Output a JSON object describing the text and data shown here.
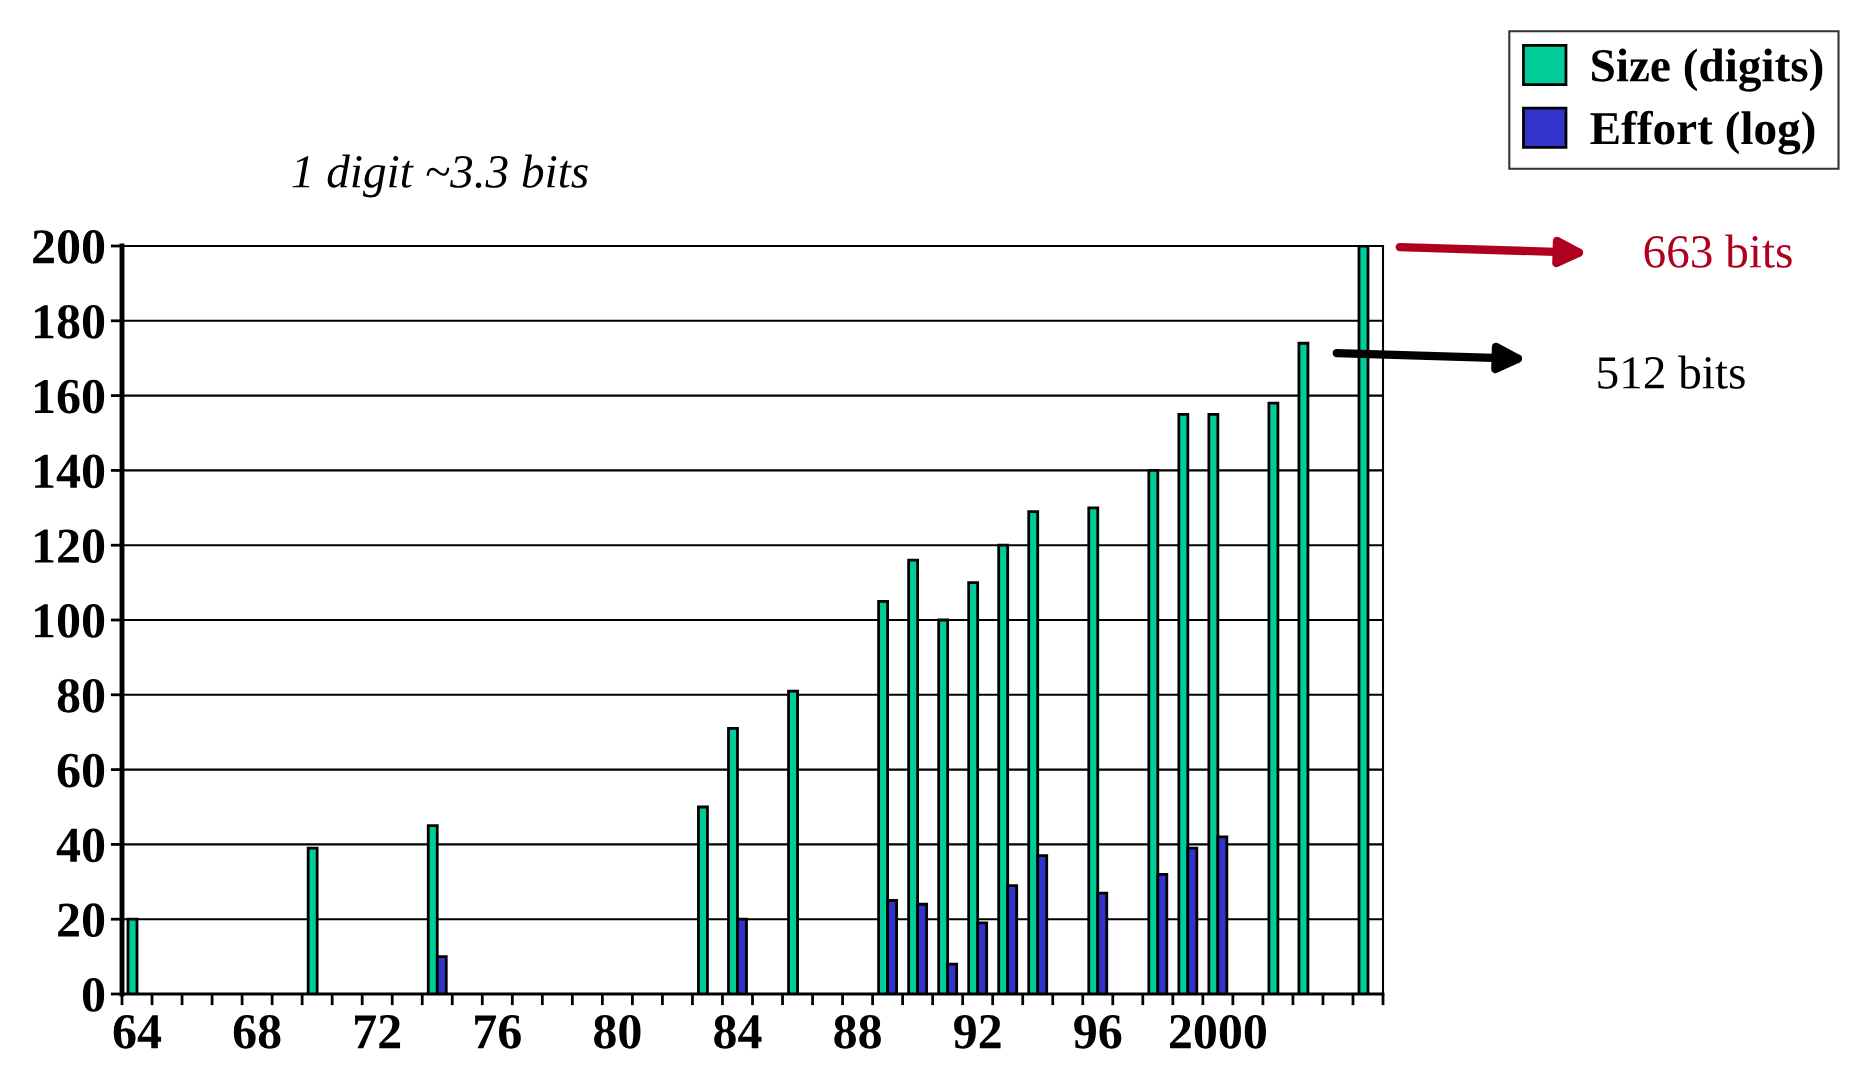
{
  "chart_data": {
    "type": "bar",
    "categories": [
      "64",
      null,
      null,
      null,
      "68",
      null,
      null,
      null,
      "72",
      null,
      null,
      null,
      "76",
      null,
      null,
      null,
      "80",
      null,
      null,
      null,
      "84",
      null,
      null,
      null,
      "88",
      null,
      null,
      null,
      "92",
      null,
      null,
      null,
      "96",
      null,
      null,
      null,
      "2000",
      null,
      null,
      null,
      null,
      null
    ],
    "series": [
      {
        "name": "Size (digits)",
        "color": "#00cc99",
        "values": [
          20,
          null,
          null,
          null,
          null,
          null,
          39,
          null,
          null,
          null,
          45,
          null,
          null,
          null,
          null,
          null,
          null,
          null,
          null,
          50,
          71,
          null,
          81,
          null,
          null,
          105,
          116,
          100,
          110,
          120,
          129,
          null,
          130,
          null,
          140,
          155,
          155,
          null,
          158,
          174,
          null,
          200
        ]
      },
      {
        "name": "Effort (log)",
        "color": "#3333cc",
        "values": [
          null,
          null,
          null,
          null,
          null,
          null,
          null,
          null,
          null,
          null,
          10,
          null,
          null,
          null,
          null,
          null,
          null,
          null,
          null,
          null,
          20,
          null,
          null,
          null,
          null,
          25,
          24,
          8,
          19,
          29,
          37,
          null,
          27,
          null,
          32,
          39,
          42,
          null,
          null,
          null,
          null,
          null
        ]
      }
    ],
    "ylim": [
      0,
      200
    ],
    "yticks": [
      0,
      20,
      40,
      60,
      80,
      100,
      120,
      140,
      160,
      180,
      200
    ],
    "grid": "y",
    "legend": "top right",
    "annotations": [
      "1 digit ~3.3 bits",
      "663 bits",
      "512 bits"
    ]
  }
}
